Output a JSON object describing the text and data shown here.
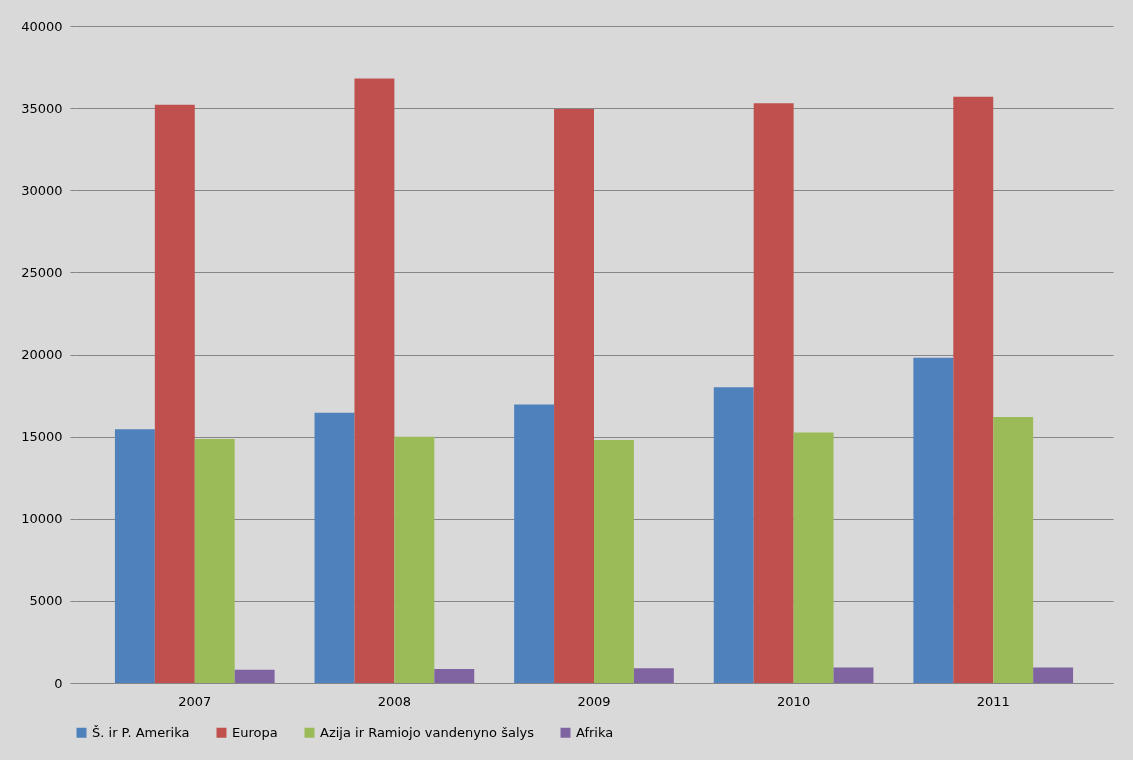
{
  "chart_data": {
    "type": "bar",
    "categories": [
      "2007",
      "2008",
      "2009",
      "2010",
      "2011"
    ],
    "series": [
      {
        "name": "Š. ir P. Amerika",
        "color": "#4f81bd",
        "values": [
          15450,
          16450,
          16950,
          18000,
          19800
        ]
      },
      {
        "name": "Europa",
        "color": "#c0504d",
        "values": [
          35200,
          36800,
          34950,
          35300,
          35700
        ]
      },
      {
        "name": "Azija ir Ramiojo vandenyno šalys",
        "color": "#9bbb59",
        "values": [
          14850,
          15000,
          14800,
          15250,
          16200
        ]
      },
      {
        "name": "Afrika",
        "color": "#8064a2",
        "values": [
          800,
          850,
          900,
          950,
          950
        ]
      }
    ],
    "ylim": [
      0,
      40000
    ],
    "yticks": [
      0,
      5000,
      10000,
      15000,
      20000,
      25000,
      30000,
      35000,
      40000
    ],
    "grid": "y",
    "legend": "bottom"
  }
}
